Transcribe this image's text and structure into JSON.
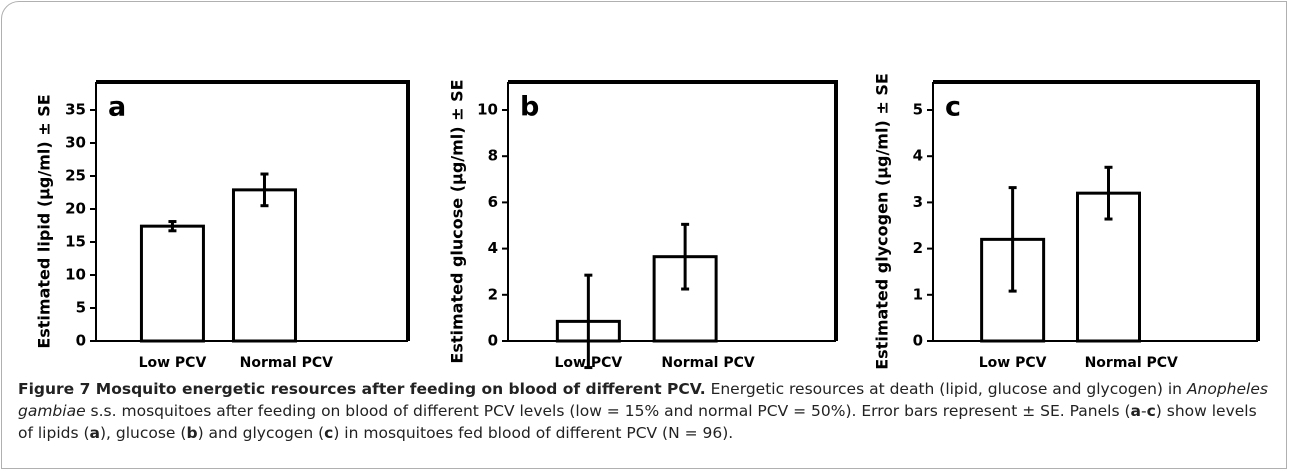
{
  "chart_data": [
    {
      "type": "bar",
      "panel": "a",
      "ylabel": "Estimated lipid (µg/ml) ± SE",
      "categories": [
        "Low PCV",
        "Normal PCV"
      ],
      "values": [
        17.4,
        22.9
      ],
      "errors": [
        0.7,
        2.4
      ],
      "ylim": [
        0,
        35
      ],
      "yticks": [
        0,
        5,
        10,
        15,
        20,
        25,
        30,
        35
      ],
      "color": "#ffffff"
    },
    {
      "type": "bar",
      "panel": "b",
      "ylabel": "Estimated glucose (µg/ml) ± SE",
      "categories": [
        "Low PCV",
        "Normal PCV"
      ],
      "values": [
        0.85,
        3.65
      ],
      "errors": [
        2.0,
        1.4
      ],
      "ylim": [
        0,
        10
      ],
      "yticks": [
        0,
        2,
        4,
        6,
        8,
        10
      ],
      "color": "#ffffff"
    },
    {
      "type": "bar",
      "panel": "c",
      "ylabel": "Estimated glycogen (µg/ml) ± SE",
      "categories": [
        "Low PCV",
        "Normal PCV"
      ],
      "values": [
        2.2,
        3.2
      ],
      "errors": [
        1.12,
        0.56
      ],
      "ylim": [
        0,
        5
      ],
      "yticks": [
        0,
        1,
        2,
        3,
        4,
        5
      ],
      "color": "#ffffff"
    }
  ],
  "caption": [
    {
      "text": "Figure 7 Mosquito energetic resources after feeding on blood of different PCV.",
      "bold": true
    },
    {
      "text": " Energetic resources at death (lipid, glucose and glycogen) in "
    },
    {
      "text": "Anopheles gambiae",
      "italic": true
    },
    {
      "text": " s.s. mosquitoes after feeding on blood of different PCV levels (low = 15% and normal PCV = 50%). Error bars represent ± SE. Panels ("
    },
    {
      "text": "a",
      "bold": true
    },
    {
      "text": "-"
    },
    {
      "text": "c",
      "bold": true
    },
    {
      "text": ") show levels of lipids ("
    },
    {
      "text": "a",
      "bold": true
    },
    {
      "text": "), glucose ("
    },
    {
      "text": "b",
      "bold": true
    },
    {
      "text": ") and glycogen ("
    },
    {
      "text": "c",
      "bold": true
    },
    {
      "text": ") in mosquitoes fed blood of different PCV (N = 96)."
    }
  ]
}
